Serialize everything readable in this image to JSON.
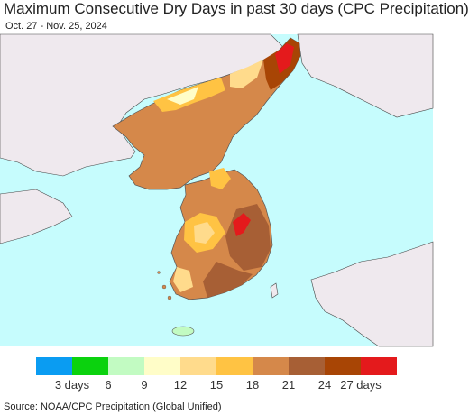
{
  "title": "Maximum Consecutive Dry Days in past 30 days (CPC Precipitation)",
  "subtitle": "Oct. 27 - Nov. 25, 2024",
  "source": "Source: NOAA/CPC Precipitation (Global Unified)",
  "legend": {
    "colors": [
      "#0a9cf2",
      "#0bd20e",
      "#c2fbc2",
      "#fffdc8",
      "#ffdb8c",
      "#ffc343",
      "#d5884a",
      "#a75f35",
      "#a84505",
      "#e41a1c"
    ],
    "ticks": [
      "3 days",
      "6",
      "9",
      "12",
      "15",
      "18",
      "21",
      "24",
      "27 days"
    ]
  },
  "colors": {
    "ocean": "#c6fcfd",
    "land_outside": "#efe9ee"
  }
}
